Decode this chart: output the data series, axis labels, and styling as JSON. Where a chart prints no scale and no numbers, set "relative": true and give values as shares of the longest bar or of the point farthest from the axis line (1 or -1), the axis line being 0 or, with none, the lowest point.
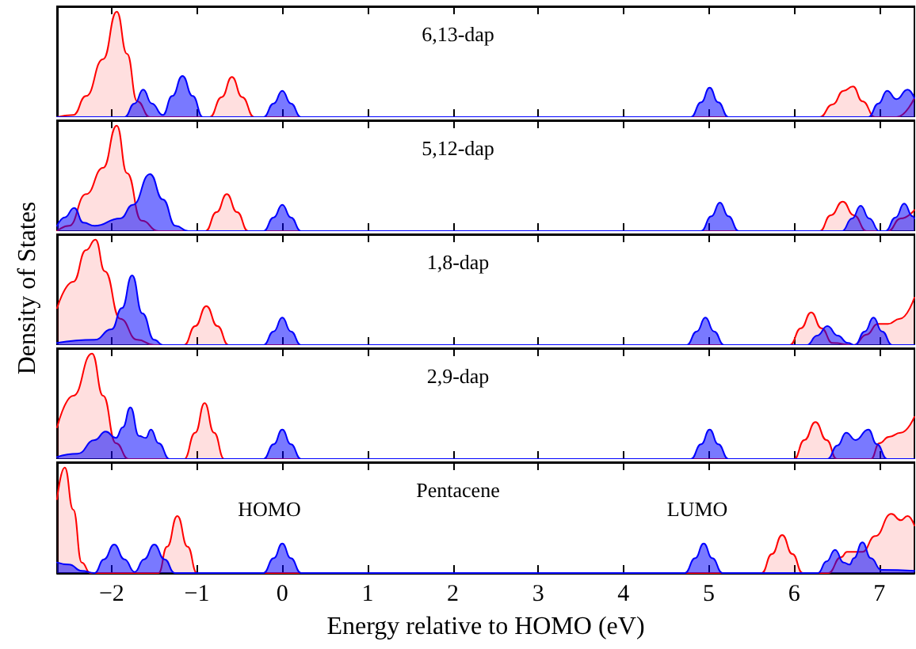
{
  "chart_data": [
    {
      "type": "area",
      "title": "6,13-dap",
      "relative": true,
      "xlim": [
        -2.64,
        7.41
      ],
      "xticks": [
        -2,
        -1,
        0,
        1,
        2,
        3,
        4,
        5,
        6,
        7
      ],
      "tick_labels": false,
      "marker": "none",
      "line_style": "solid",
      "series": [
        {
          "color": "#ff0000",
          "x": [
            -2.64,
            -2.45,
            -2.3,
            -2.1,
            -1.94,
            -1.82,
            -1.7,
            -1.55,
            -0.85,
            -0.71,
            -0.59,
            -0.47,
            -0.33,
            6.3,
            6.45,
            6.58,
            6.69,
            6.8,
            6.95,
            7.2,
            7.41
          ],
          "values": [
            0,
            0.02,
            0.2,
            0.55,
            1,
            0.6,
            0.15,
            0,
            0,
            0.19,
            0.38,
            0.19,
            0,
            0,
            0.12,
            0.25,
            0.29,
            0.15,
            0,
            0,
            0.18
          ]
        },
        {
          "color": "#0000ff",
          "x": [
            -2.64,
            -1.85,
            -1.73,
            -1.63,
            -1.53,
            -1.4,
            -1.29,
            -1.17,
            -1.05,
            -0.93,
            -0.22,
            -0.1,
            0,
            0.1,
            0.22,
            4.79,
            4.91,
            5.01,
            5.11,
            5.23,
            6.87,
            6.99,
            7.09,
            7.2,
            7.33,
            7.41
          ],
          "values": [
            0,
            0,
            0.13,
            0.26,
            0.13,
            0.02,
            0.2,
            0.39,
            0.2,
            0,
            0,
            0.13,
            0.25,
            0.13,
            0,
            0,
            0.14,
            0.28,
            0.14,
            0,
            0,
            0.13,
            0.25,
            0.17,
            0.26,
            0.18
          ]
        }
      ]
    },
    {
      "type": "area",
      "title": "5,12-dap",
      "relative": true,
      "xlim": [
        -2.64,
        7.41
      ],
      "xticks": [
        -2,
        -1,
        0,
        1,
        2,
        3,
        4,
        5,
        6,
        7
      ],
      "tick_labels": false,
      "marker": "none",
      "line_style": "solid",
      "series": [
        {
          "color": "#ff0000",
          "x": [
            -2.64,
            -2.5,
            -2.3,
            -2.1,
            -1.94,
            -1.82,
            -1.65,
            -1.45,
            -0.9,
            -0.77,
            -0.65,
            -0.53,
            -0.4,
            6.3,
            6.43,
            6.57,
            6.7,
            6.85,
            7.1,
            7.25,
            7.41
          ],
          "values": [
            0,
            0.05,
            0.35,
            0.6,
            1,
            0.55,
            0.1,
            0,
            0,
            0.18,
            0.35,
            0.18,
            0,
            0,
            0.15,
            0.28,
            0.15,
            0,
            0,
            0.12,
            0.2
          ]
        },
        {
          "color": "#0000ff",
          "x": [
            -2.64,
            -2.55,
            -2.44,
            -2.33,
            -2.2,
            -1.9,
            -1.75,
            -1.55,
            -1.4,
            -1.25,
            -1.1,
            -0.22,
            -0.1,
            0,
            0.1,
            0.22,
            4.91,
            5.03,
            5.13,
            5.23,
            5.35,
            6.56,
            6.68,
            6.78,
            6.88,
            7.0,
            7.07,
            7.19,
            7.29,
            7.39,
            7.41
          ],
          "values": [
            0.05,
            0.13,
            0.22,
            0.08,
            0.05,
            0.12,
            0.25,
            0.54,
            0.3,
            0.05,
            0,
            0,
            0.13,
            0.25,
            0.13,
            0,
            0,
            0.14,
            0.27,
            0.14,
            0,
            0,
            0.12,
            0.24,
            0.12,
            0,
            0,
            0.13,
            0.26,
            0.14,
            0.12
          ]
        }
      ]
    },
    {
      "type": "area",
      "title": "1,8-dap",
      "ylabel": "Density of States",
      "relative": true,
      "xlim": [
        -2.64,
        7.41
      ],
      "xticks": [
        -2,
        -1,
        0,
        1,
        2,
        3,
        4,
        5,
        6,
        7
      ],
      "tick_labels": false,
      "marker": "none",
      "line_style": "solid",
      "series": [
        {
          "color": "#ff0000",
          "x": [
            -2.64,
            -2.45,
            -2.3,
            -2.19,
            -2.08,
            -1.9,
            -1.7,
            -1.5,
            -1.15,
            -1.02,
            -0.89,
            -0.76,
            -0.63,
            5.95,
            6.08,
            6.2,
            6.32,
            6.45,
            6.7,
            6.85,
            6.98,
            7.1,
            7.24,
            7.41
          ],
          "values": [
            0.35,
            0.6,
            0.9,
            1,
            0.7,
            0.25,
            0.05,
            0,
            0,
            0.18,
            0.37,
            0.18,
            0,
            0,
            0.16,
            0.31,
            0.16,
            0.02,
            0,
            0.1,
            0.2,
            0.2,
            0.25,
            0.45
          ]
        },
        {
          "color": "#0000ff",
          "x": [
            -2.64,
            -2.2,
            -2.0,
            -1.88,
            -1.76,
            -1.64,
            -1.5,
            -1.4,
            -0.22,
            -0.1,
            0,
            0.1,
            0.22,
            4.74,
            4.86,
            4.96,
            5.06,
            5.18,
            6.15,
            6.27,
            6.39,
            6.51,
            6.63,
            6.71,
            6.83,
            6.93,
            7.03,
            7.15,
            7.41
          ],
          "values": [
            0.02,
            0.05,
            0.15,
            0.35,
            0.66,
            0.3,
            0.05,
            0,
            0,
            0.13,
            0.26,
            0.13,
            0,
            0,
            0.13,
            0.26,
            0.13,
            0,
            0,
            0.09,
            0.18,
            0.09,
            0.02,
            0,
            0.13,
            0.26,
            0.13,
            0,
            0
          ]
        }
      ]
    },
    {
      "type": "area",
      "title": "2,9-dap",
      "relative": true,
      "xlim": [
        -2.64,
        7.41
      ],
      "xticks": [
        -2,
        -1,
        0,
        1,
        2,
        3,
        4,
        5,
        6,
        7
      ],
      "tick_labels": false,
      "marker": "none",
      "line_style": "solid",
      "series": [
        {
          "color": "#ff0000",
          "x": [
            -2.64,
            -2.45,
            -2.23,
            -2.1,
            -1.95,
            -1.8,
            -1.15,
            -1.02,
            -0.91,
            -0.8,
            -0.68,
            6.0,
            6.12,
            6.25,
            6.38,
            6.5,
            6.9,
            7.0,
            7.11,
            7.25,
            7.41
          ],
          "values": [
            0.3,
            0.6,
            1,
            0.6,
            0.15,
            0,
            0,
            0.25,
            0.53,
            0.25,
            0,
            0,
            0.18,
            0.35,
            0.18,
            0,
            0,
            0.15,
            0.21,
            0.25,
            0.4
          ]
        },
        {
          "color": "#0000ff",
          "x": [
            -2.64,
            -2.4,
            -2.2,
            -2.07,
            -1.95,
            -1.87,
            -1.78,
            -1.68,
            -1.6,
            -1.54,
            -1.45,
            -1.32,
            -0.22,
            -0.1,
            0,
            0.1,
            0.22,
            4.79,
            4.91,
            5.01,
            5.11,
            5.23,
            6.39,
            6.51,
            6.61,
            6.72,
            6.87,
            6.97,
            7.09,
            7.41
          ],
          "values": [
            0.02,
            0.05,
            0.18,
            0.26,
            0.2,
            0.3,
            0.49,
            0.22,
            0.2,
            0.28,
            0.15,
            0,
            0,
            0.14,
            0.28,
            0.14,
            0,
            0,
            0.14,
            0.28,
            0.14,
            0,
            0,
            0.13,
            0.25,
            0.18,
            0.28,
            0.14,
            0,
            0
          ]
        }
      ]
    },
    {
      "type": "area",
      "title": "Pentacene",
      "xlabel": "Energy relative to HOMO (eV)",
      "relative": true,
      "xlim": [
        -2.64,
        7.41
      ],
      "xticks": [
        -2,
        -1,
        0,
        1,
        2,
        3,
        4,
        5,
        6,
        7
      ],
      "tick_labels": "x",
      "marker": "none",
      "line_style": "solid",
      "annotations": [
        "HOMO",
        "LUMO"
      ],
      "series": [
        {
          "color": "#ff0000",
          "x": [
            -2.64,
            -2.55,
            -2.45,
            -2.35,
            -2.25,
            -1.45,
            -1.35,
            -1.23,
            -1.11,
            -1.0,
            5.62,
            5.74,
            5.86,
            5.98,
            6.1,
            6.4,
            6.55,
            6.62,
            6.8,
            6.95,
            7.14,
            7.25,
            7.33,
            7.41
          ],
          "values": [
            0.7,
            1,
            0.6,
            0.1,
            0,
            0,
            0.25,
            0.54,
            0.25,
            0,
            0,
            0.18,
            0.36,
            0.18,
            0,
            0,
            0.15,
            0.2,
            0.2,
            0.35,
            0.56,
            0.5,
            0.54,
            0.45
          ]
        },
        {
          "color": "#0000ff",
          "x": [
            -2.64,
            -2.5,
            -2.35,
            -2.2,
            -2.09,
            -1.97,
            -1.85,
            -1.73,
            -1.62,
            -1.5,
            -1.38,
            -1.26,
            -0.22,
            -0.1,
            0,
            0.1,
            0.22,
            4.72,
            4.84,
            4.94,
            5.04,
            5.16,
            6.28,
            6.38,
            6.48,
            6.58,
            6.65,
            6.7,
            6.8,
            6.9,
            7.02,
            7.41
          ],
          "values": [
            0.1,
            0.08,
            0.02,
            0,
            0.13,
            0.27,
            0.13,
            0.01,
            0.13,
            0.27,
            0.13,
            0,
            0,
            0.14,
            0.28,
            0.14,
            0,
            0,
            0.14,
            0.28,
            0.14,
            0,
            0,
            0.11,
            0.22,
            0.1,
            0.08,
            0.14,
            0.29,
            0.14,
            0.03,
            0.02
          ]
        }
      ]
    }
  ]
}
